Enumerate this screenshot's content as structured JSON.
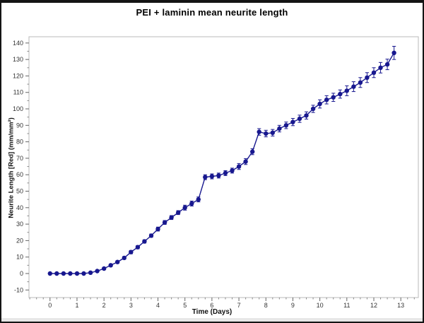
{
  "figure": {
    "title": "PEI + laminin mean neurite length",
    "xlabel": "Time (Days)",
    "ylabel": "Neurite Length [Red] (mm/mm²)"
  },
  "chart_data": {
    "type": "line",
    "title": "PEI + laminin mean neurite length",
    "xlabel": "Time (Days)",
    "ylabel": "Neurite Length [Red] (mm/mm²)",
    "xlim": [
      -0.78,
      13.65
    ],
    "ylim": [
      -14.6,
      143.8
    ],
    "x_major_ticks": [
      0,
      1,
      2,
      3,
      4,
      5,
      6,
      7,
      8,
      9,
      10,
      11,
      12,
      13
    ],
    "x_minor_step": 0.25,
    "y_major_ticks": [
      -10,
      0,
      10,
      20,
      30,
      40,
      50,
      60,
      70,
      80,
      90,
      100,
      110,
      120,
      130,
      140
    ],
    "y_minor_step": 5,
    "grid": false,
    "legend": "none",
    "series": [
      {
        "name": "PEI + laminin mean neurite length",
        "color": "#18188f",
        "marker": "circle",
        "x": [
          0,
          0.25,
          0.5,
          0.75,
          1,
          1.25,
          1.5,
          1.75,
          2,
          2.25,
          2.5,
          2.75,
          3,
          3.25,
          3.5,
          3.75,
          4,
          4.25,
          4.5,
          4.75,
          5,
          5.25,
          5.5,
          5.75,
          6,
          6.25,
          6.5,
          6.75,
          7,
          7.25,
          7.5,
          7.75,
          8,
          8.25,
          8.5,
          8.75,
          9,
          9.25,
          9.5,
          9.75,
          10,
          10.25,
          10.5,
          10.75,
          11,
          11.25,
          11.5,
          11.75,
          12,
          12.25,
          12.5,
          12.75
        ],
        "y": [
          0,
          0,
          0,
          0,
          0,
          0,
          0.5,
          1.5,
          3,
          5,
          7,
          9.5,
          13,
          16,
          19.5,
          23,
          27,
          31,
          34,
          37,
          40,
          42.5,
          45,
          58.5,
          59,
          59.5,
          61,
          62.5,
          65,
          68,
          74,
          86,
          85,
          85.5,
          88,
          90,
          92,
          94,
          96,
          100,
          103,
          105.5,
          107,
          109,
          111,
          113.5,
          116,
          119,
          122,
          125,
          127,
          134
        ],
        "yerr": [
          0.4,
          0.4,
          0.4,
          0.4,
          0.4,
          0.4,
          0.4,
          0.5,
          0.5,
          0.6,
          0.7,
          0.8,
          1,
          1,
          1,
          1,
          1.2,
          1.2,
          1.2,
          1.2,
          1.5,
          1.5,
          1.5,
          1.5,
          1.5,
          1.5,
          1.5,
          1.5,
          1.8,
          1.8,
          1.8,
          2,
          2,
          2,
          2,
          2,
          2.2,
          2.2,
          2.2,
          2.2,
          2.5,
          2.5,
          2.5,
          2.5,
          3,
          3,
          3,
          3,
          3,
          3.2,
          3.2,
          4
        ]
      }
    ]
  },
  "style": {
    "series_color": "#18188f",
    "plot_border_color": "#b8b8b8",
    "tick_color": "#8a8a8a",
    "tick_label_color": "#333333",
    "background": "#ffffff",
    "frame_color": "#141414"
  }
}
